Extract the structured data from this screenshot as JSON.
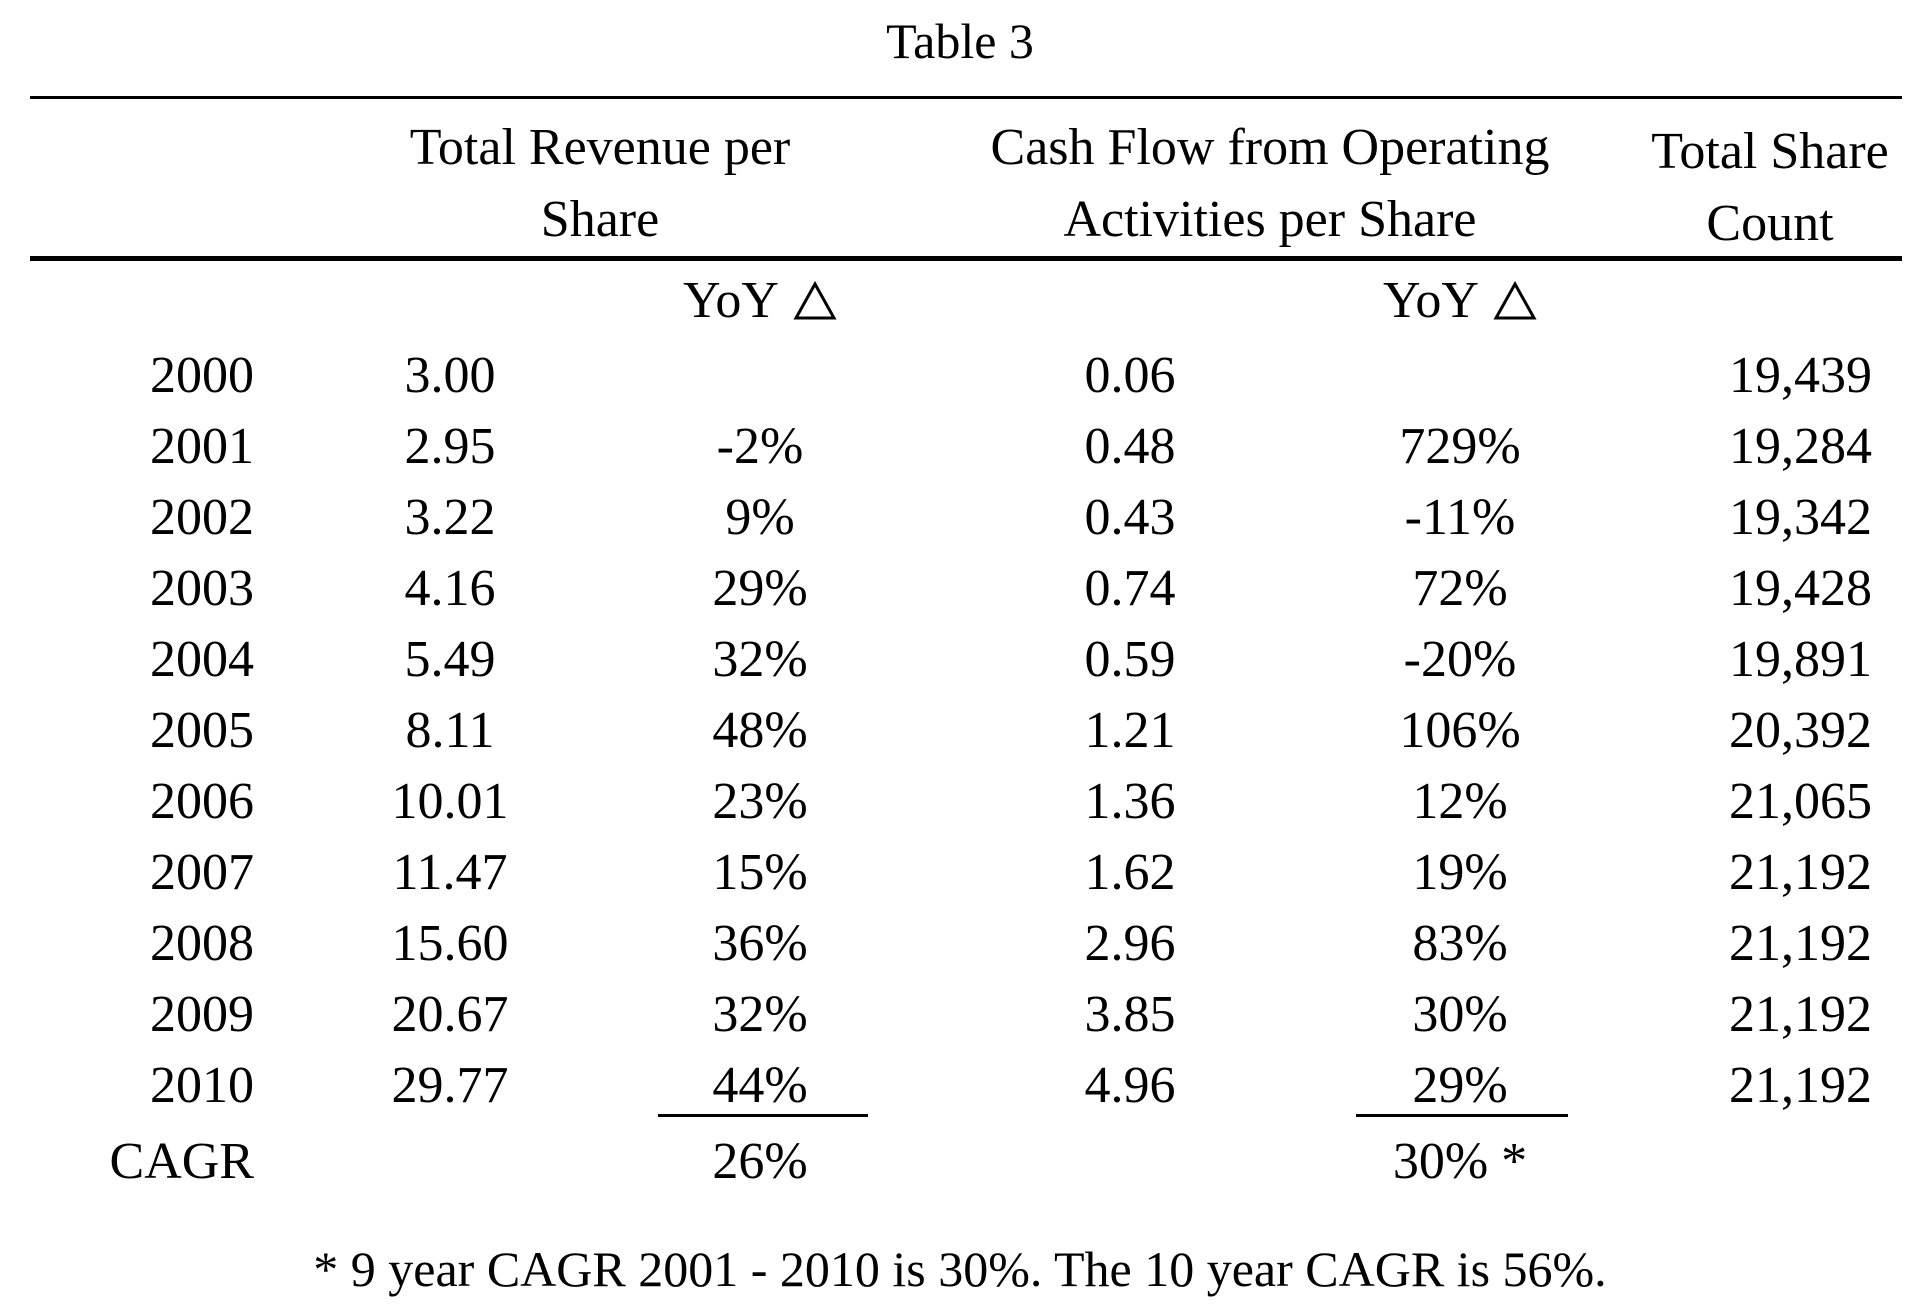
{
  "title": "Table 3",
  "headers": {
    "revenue": [
      "Total Revenue per",
      "Share"
    ],
    "cash_flow": [
      "Cash Flow from Operating",
      "Activities per Share"
    ],
    "share_count": [
      "Total Share",
      "Count"
    ]
  },
  "subheaders": {
    "revenue_yoy": "YoY",
    "cash_flow_yoy": "YoY",
    "delta_icon": "triangle-delta-icon"
  },
  "rows": [
    {
      "year": "2000",
      "revenue": "3.00",
      "revenue_yoy": "",
      "cash_flow": "0.06",
      "cash_flow_yoy": "",
      "share_count": "19,439"
    },
    {
      "year": "2001",
      "revenue": "2.95",
      "revenue_yoy": "-2%",
      "cash_flow": "0.48",
      "cash_flow_yoy": "729%",
      "share_count": "19,284"
    },
    {
      "year": "2002",
      "revenue": "3.22",
      "revenue_yoy": "9%",
      "cash_flow": "0.43",
      "cash_flow_yoy": "-11%",
      "share_count": "19,342"
    },
    {
      "year": "2003",
      "revenue": "4.16",
      "revenue_yoy": "29%",
      "cash_flow": "0.74",
      "cash_flow_yoy": "72%",
      "share_count": "19,428"
    },
    {
      "year": "2004",
      "revenue": "5.49",
      "revenue_yoy": "32%",
      "cash_flow": "0.59",
      "cash_flow_yoy": "-20%",
      "share_count": "19,891"
    },
    {
      "year": "2005",
      "revenue": "8.11",
      "revenue_yoy": "48%",
      "cash_flow": "1.21",
      "cash_flow_yoy": "106%",
      "share_count": "20,392"
    },
    {
      "year": "2006",
      "revenue": "10.01",
      "revenue_yoy": "23%",
      "cash_flow": "1.36",
      "cash_flow_yoy": "12%",
      "share_count": "21,065"
    },
    {
      "year": "2007",
      "revenue": "11.47",
      "revenue_yoy": "15%",
      "cash_flow": "1.62",
      "cash_flow_yoy": "19%",
      "share_count": "21,192"
    },
    {
      "year": "2008",
      "revenue": "15.60",
      "revenue_yoy": "36%",
      "cash_flow": "2.96",
      "cash_flow_yoy": "83%",
      "share_count": "21,192"
    },
    {
      "year": "2009",
      "revenue": "20.67",
      "revenue_yoy": "32%",
      "cash_flow": "3.85",
      "cash_flow_yoy": "30%",
      "share_count": "21,192"
    },
    {
      "year": "2010",
      "revenue": "29.77",
      "revenue_yoy": "44%",
      "cash_flow": "4.96",
      "cash_flow_yoy": "29%",
      "share_count": "21,192"
    }
  ],
  "cagr": {
    "label": "CAGR",
    "revenue_yoy": "26%",
    "cash_flow_yoy": "30% *"
  },
  "footnote": "* 9 year CAGR 2001 - 2010 is 30%.  The 10 year CAGR is 56%."
}
